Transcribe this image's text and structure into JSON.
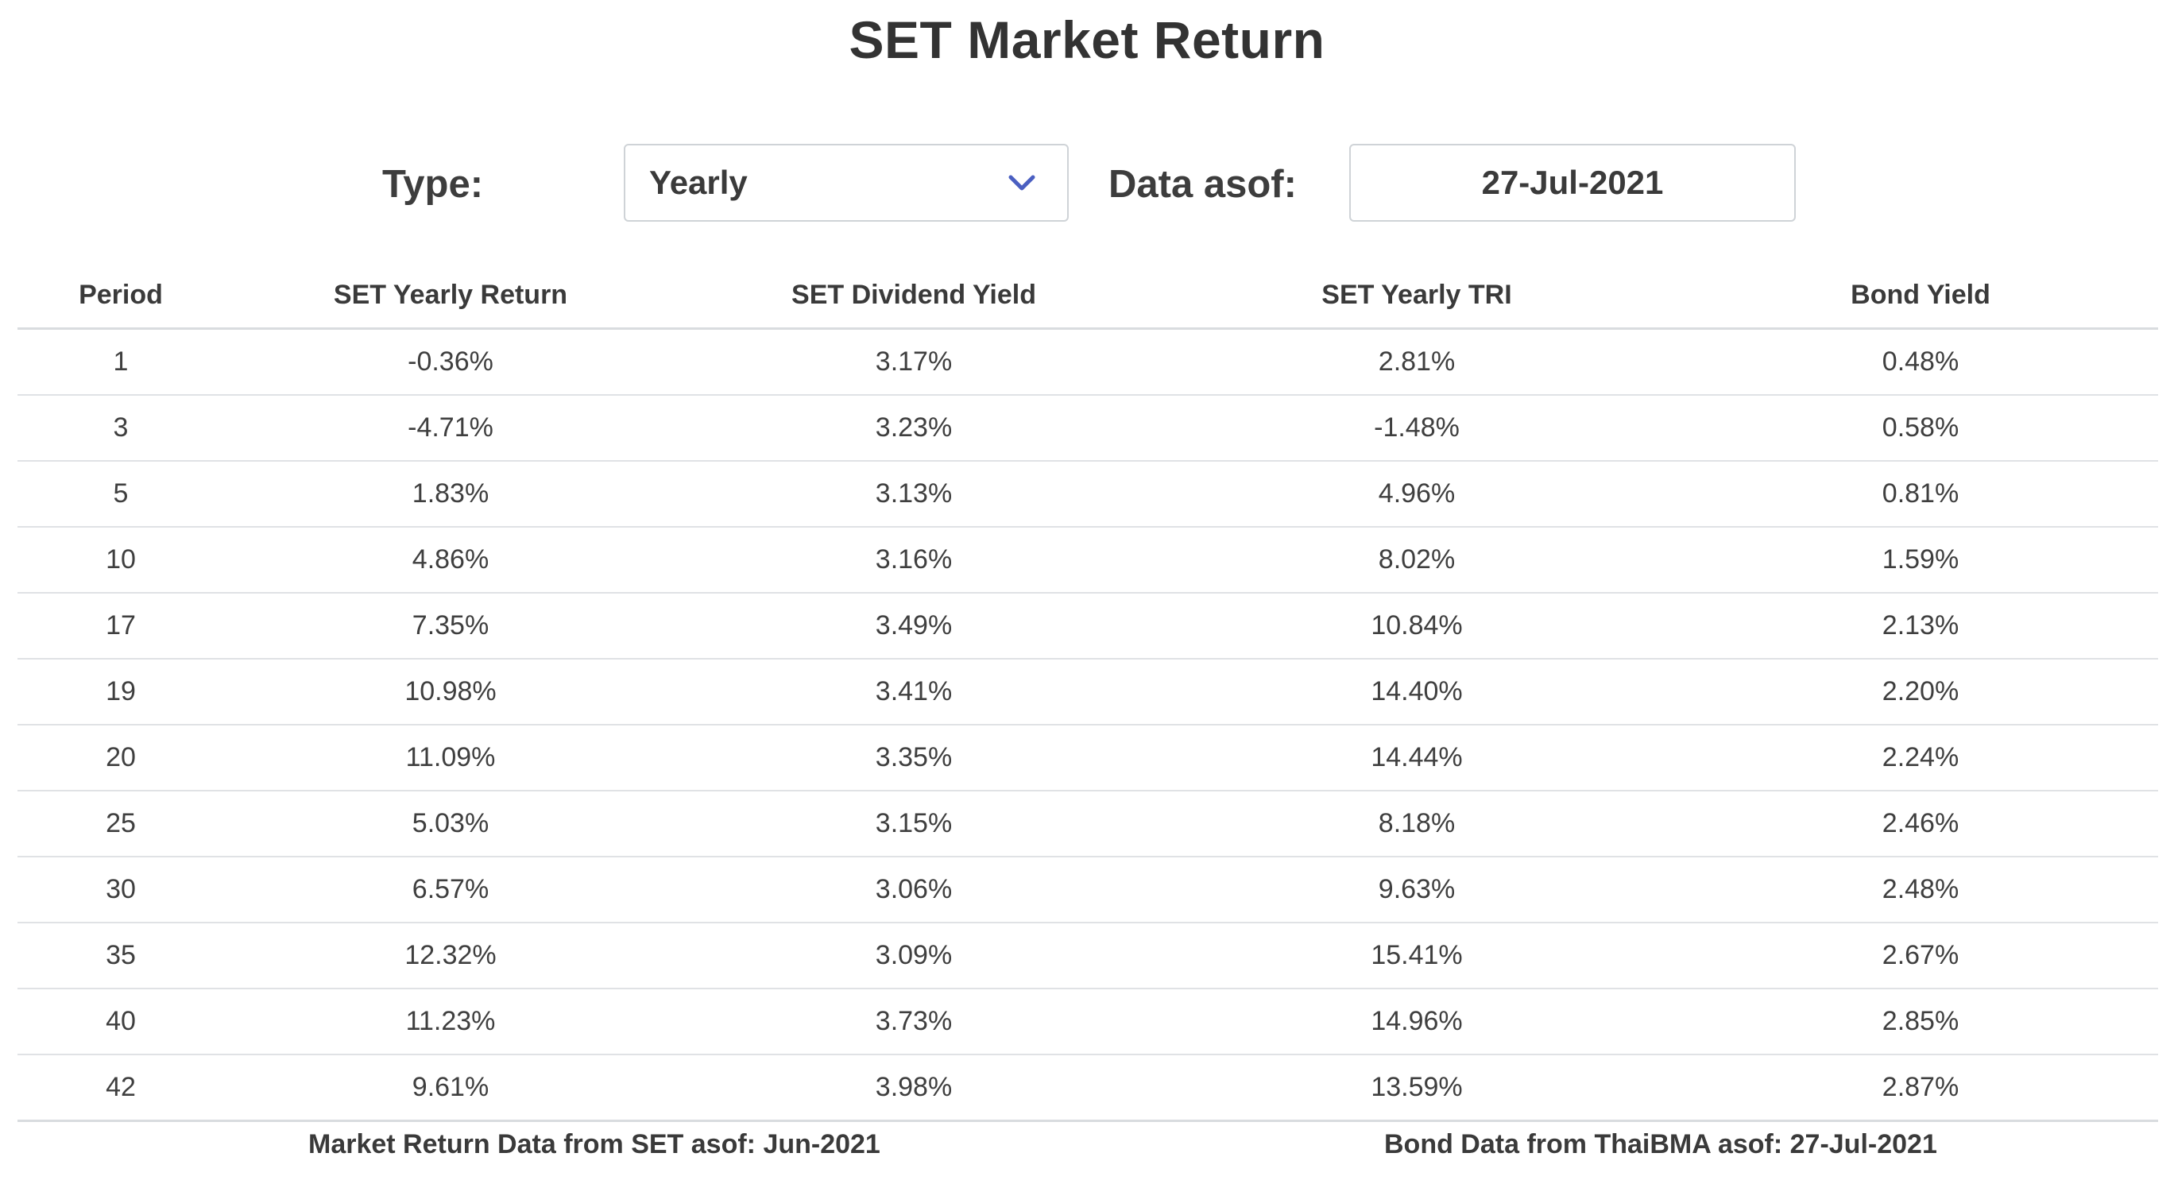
{
  "page": {
    "title": "SET Market Return"
  },
  "controls": {
    "type_label": "Type:",
    "type_value": "Yearly",
    "asof_label": "Data asof:",
    "asof_value": "27-Jul-2021",
    "accent_color": "#4a5fc1"
  },
  "table": {
    "headers": {
      "period": "Period",
      "return": "SET Yearly Return",
      "dividend": "SET Dividend Yield",
      "tri": "SET Yearly TRI",
      "bond": "Bond Yield"
    },
    "rows": [
      {
        "period": "1",
        "return": "-0.36%",
        "dividend": "3.17%",
        "tri": "2.81%",
        "bond": "0.48%"
      },
      {
        "period": "3",
        "return": "-4.71%",
        "dividend": "3.23%",
        "tri": "-1.48%",
        "bond": "0.58%"
      },
      {
        "period": "5",
        "return": "1.83%",
        "dividend": "3.13%",
        "tri": "4.96%",
        "bond": "0.81%"
      },
      {
        "period": "10",
        "return": "4.86%",
        "dividend": "3.16%",
        "tri": "8.02%",
        "bond": "1.59%"
      },
      {
        "period": "17",
        "return": "7.35%",
        "dividend": "3.49%",
        "tri": "10.84%",
        "bond": "2.13%"
      },
      {
        "period": "19",
        "return": "10.98%",
        "dividend": "3.41%",
        "tri": "14.40%",
        "bond": "2.20%"
      },
      {
        "period": "20",
        "return": "11.09%",
        "dividend": "3.35%",
        "tri": "14.44%",
        "bond": "2.24%"
      },
      {
        "period": "25",
        "return": "5.03%",
        "dividend": "3.15%",
        "tri": "8.18%",
        "bond": "2.46%"
      },
      {
        "period": "30",
        "return": "6.57%",
        "dividend": "3.06%",
        "tri": "9.63%",
        "bond": "2.48%"
      },
      {
        "period": "35",
        "return": "12.32%",
        "dividend": "3.09%",
        "tri": "15.41%",
        "bond": "2.67%"
      },
      {
        "period": "40",
        "return": "11.23%",
        "dividend": "3.73%",
        "tri": "14.96%",
        "bond": "2.85%"
      },
      {
        "period": "42",
        "return": "9.61%",
        "dividend": "3.98%",
        "tri": "13.59%",
        "bond": "2.87%"
      }
    ]
  },
  "footer": {
    "market_note": "Market Return Data from SET asof: Jun-2021",
    "bond_note": "Bond Data from ThaiBMA asof: 27-Jul-2021"
  }
}
